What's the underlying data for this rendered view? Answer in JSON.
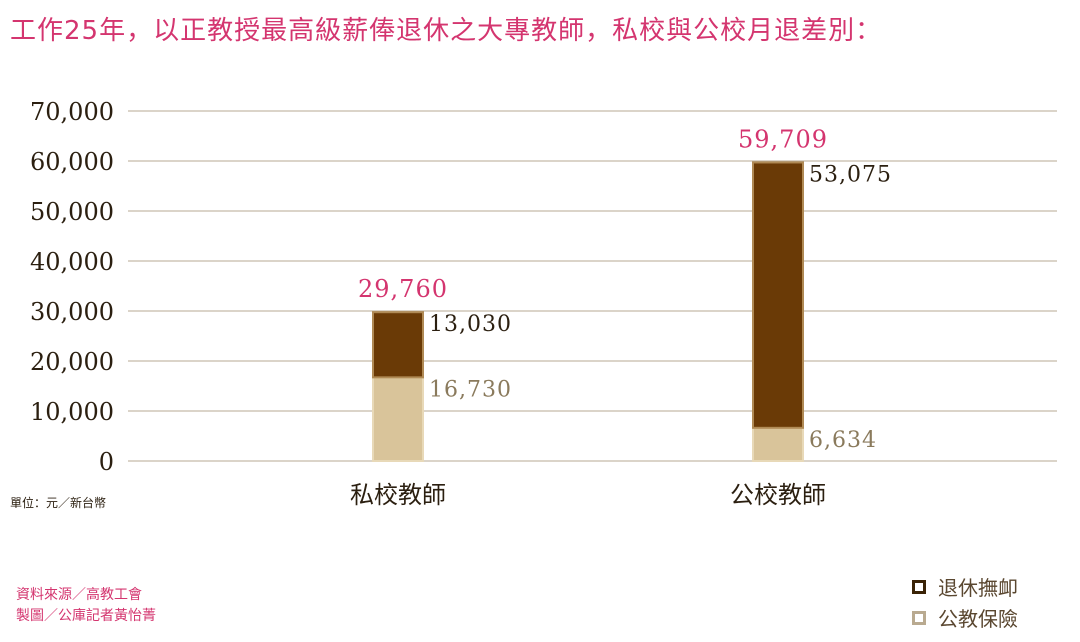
{
  "chart_data": {
    "type": "bar",
    "stacked": true,
    "title": "工作25年，以正教授最高級薪俸退休之大專教師，私校與公校月退差別：",
    "unit_note": "單位：元／新台幣",
    "categories": [
      "私校教師",
      "公校教師"
    ],
    "series": [
      {
        "name": "公教保險",
        "values": [
          16730,
          6634
        ],
        "color": "#d9c49a"
      },
      {
        "name": "退休撫卹",
        "values": [
          13030,
          53075
        ],
        "color": "#6a3a06"
      }
    ],
    "totals": [
      29760,
      59709
    ],
    "total_labels": [
      "29,760",
      "59,709"
    ],
    "segment_labels": {
      "pension": [
        "13,030",
        "53,075"
      ],
      "insurance": [
        "16,730",
        "6,634"
      ]
    },
    "ylim": [
      0,
      70000
    ],
    "yticks": [
      0,
      10000,
      20000,
      30000,
      40000,
      50000,
      60000,
      70000
    ],
    "ytick_labels": [
      "0",
      "10,000",
      "20,000",
      "30,000",
      "40,000",
      "50,000",
      "60,000",
      "70,000"
    ],
    "grid": true,
    "legend_position": "bottom-right",
    "colors": {
      "title": "#d4356f",
      "pension": "#6a3a06",
      "insurance": "#d9c49a",
      "grid": "#b7aa93"
    }
  },
  "footer": {
    "source": "資料來源／高教工會",
    "maker": "製圖／公庫記者黃怡菁"
  },
  "legend": {
    "pension": "退休撫卹",
    "insurance": "公教保險"
  }
}
